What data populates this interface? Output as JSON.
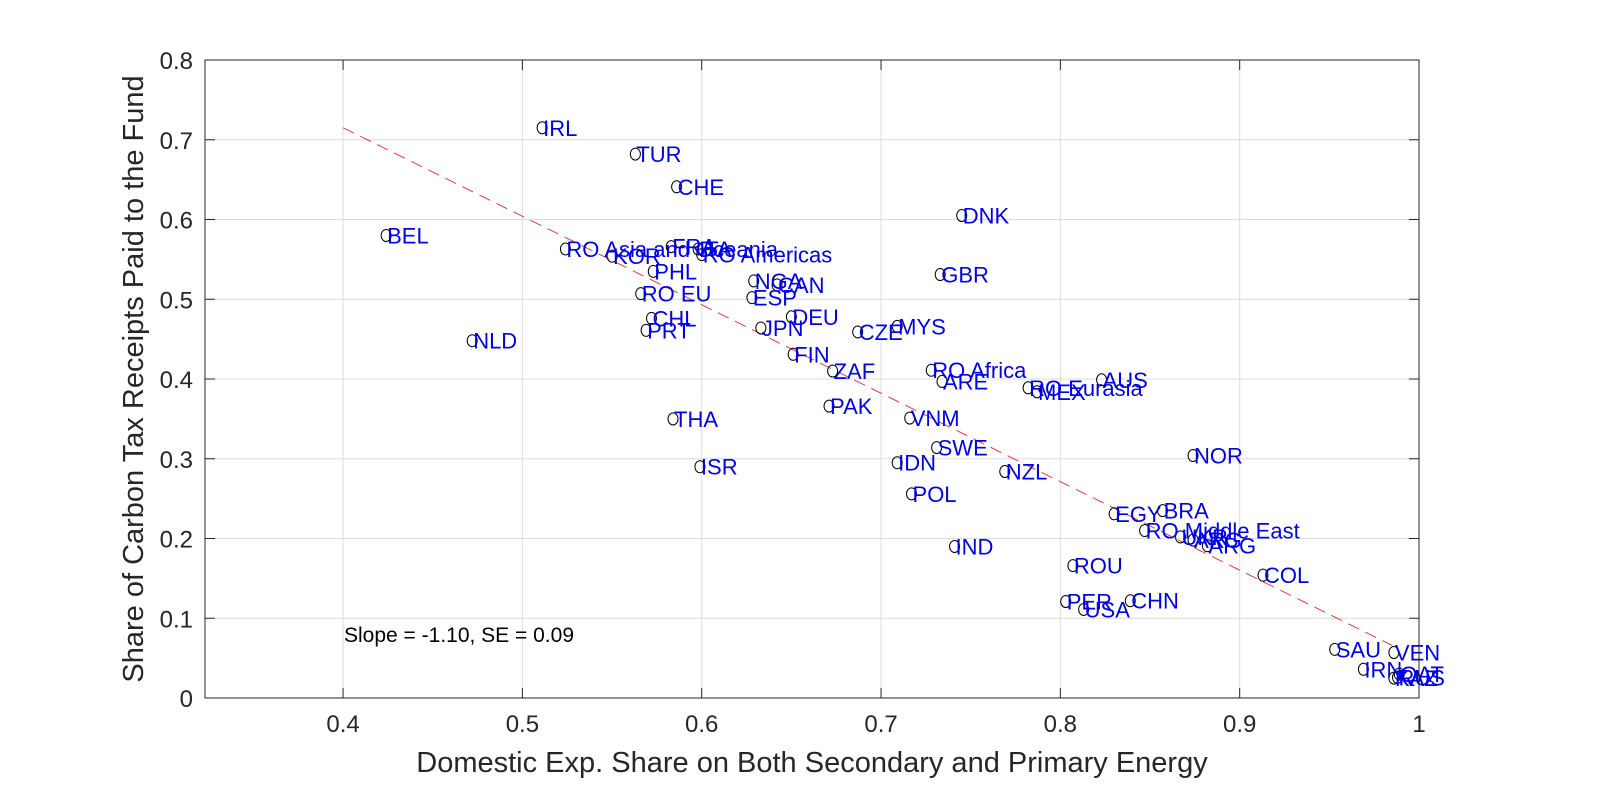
{
  "chart_data": {
    "type": "scatter",
    "xlabel": "Domestic Exp. Share on Both Secondary and Primary Energy",
    "ylabel": "Share of Carbon Tax Receipts Paid to the Fund",
    "xlim": [
      0.323,
      1.0
    ],
    "ylim": [
      0,
      0.8
    ],
    "xticks": [
      0.4,
      0.5,
      0.6,
      0.7,
      0.8,
      0.9,
      1
    ],
    "xtick_labels": [
      "0.4",
      "0.5",
      "0.6",
      "0.7",
      "0.8",
      "0.9",
      "1"
    ],
    "yticks": [
      0,
      0.1,
      0.2,
      0.3,
      0.4,
      0.5,
      0.6,
      0.7,
      0.8
    ],
    "ytick_labels": [
      "0",
      "0.1",
      "0.2",
      "0.3",
      "0.4",
      "0.5",
      "0.6",
      "0.7",
      "0.8"
    ],
    "grid": true,
    "annotation": "Slope = -1.10, SE = 0.09",
    "fit_line": {
      "x": [
        0.4,
        0.985
      ],
      "y": [
        0.715,
        0.066
      ]
    },
    "points": [
      {
        "label": "IRL",
        "x": 0.511,
        "y": 0.715
      },
      {
        "label": "TUR",
        "x": 0.563,
        "y": 0.682
      },
      {
        "label": "CHE",
        "x": 0.586,
        "y": 0.641
      },
      {
        "label": "DNK",
        "x": 0.745,
        "y": 0.605
      },
      {
        "label": "BEL",
        "x": 0.424,
        "y": 0.58
      },
      {
        "label": "RO Asia and Oceania",
        "x": 0.524,
        "y": 0.563
      },
      {
        "label": "FRA",
        "x": 0.583,
        "y": 0.566
      },
      {
        "label": "ITA",
        "x": 0.598,
        "y": 0.563
      },
      {
        "label": "RO Americas",
        "x": 0.6,
        "y": 0.556
      },
      {
        "label": "KOR",
        "x": 0.55,
        "y": 0.554
      },
      {
        "label": "PHL",
        "x": 0.573,
        "y": 0.535
      },
      {
        "label": "GBR",
        "x": 0.733,
        "y": 0.531
      },
      {
        "label": "NGA",
        "x": 0.629,
        "y": 0.523
      },
      {
        "label": "CAN",
        "x": 0.642,
        "y": 0.518
      },
      {
        "label": "RO EU",
        "x": 0.566,
        "y": 0.507
      },
      {
        "label": "ESP",
        "x": 0.628,
        "y": 0.502
      },
      {
        "label": "DEU",
        "x": 0.65,
        "y": 0.478
      },
      {
        "label": "CHL",
        "x": 0.572,
        "y": 0.476
      },
      {
        "label": "MYS",
        "x": 0.709,
        "y": 0.466
      },
      {
        "label": "JPN",
        "x": 0.633,
        "y": 0.464
      },
      {
        "label": "PRT",
        "x": 0.569,
        "y": 0.461
      },
      {
        "label": "CZE",
        "x": 0.687,
        "y": 0.459
      },
      {
        "label": "NLD",
        "x": 0.472,
        "y": 0.448
      },
      {
        "label": "FIN",
        "x": 0.651,
        "y": 0.431
      },
      {
        "label": "RO Africa",
        "x": 0.728,
        "y": 0.411
      },
      {
        "label": "ZAF",
        "x": 0.673,
        "y": 0.41
      },
      {
        "label": "AUS",
        "x": 0.823,
        "y": 0.399
      },
      {
        "label": "ARE",
        "x": 0.734,
        "y": 0.397
      },
      {
        "label": "RO Eurasia",
        "x": 0.782,
        "y": 0.389
      },
      {
        "label": "MEX",
        "x": 0.787,
        "y": 0.384
      },
      {
        "label": "PAK",
        "x": 0.671,
        "y": 0.366
      },
      {
        "label": "THA",
        "x": 0.584,
        "y": 0.35
      },
      {
        "label": "VNM",
        "x": 0.716,
        "y": 0.351
      },
      {
        "label": "SWE",
        "x": 0.731,
        "y": 0.314
      },
      {
        "label": "NOR",
        "x": 0.874,
        "y": 0.304
      },
      {
        "label": "IDN",
        "x": 0.709,
        "y": 0.295
      },
      {
        "label": "ISR",
        "x": 0.599,
        "y": 0.29
      },
      {
        "label": "NZL",
        "x": 0.769,
        "y": 0.284
      },
      {
        "label": "POL",
        "x": 0.717,
        "y": 0.256
      },
      {
        "label": "BRA",
        "x": 0.857,
        "y": 0.235
      },
      {
        "label": "EGY",
        "x": 0.83,
        "y": 0.231
      },
      {
        "label": "RO Middle East",
        "x": 0.847,
        "y": 0.21
      },
      {
        "label": "UKR",
        "x": 0.867,
        "y": 0.202
      },
      {
        "label": "ARG",
        "x": 0.874,
        "y": 0.198
      },
      {
        "label": "ARG",
        "x": 0.882,
        "y": 0.191
      },
      {
        "label": "IND",
        "x": 0.741,
        "y": 0.19
      },
      {
        "label": "ROU",
        "x": 0.807,
        "y": 0.166
      },
      {
        "label": "COL",
        "x": 0.913,
        "y": 0.154
      },
      {
        "label": "PER",
        "x": 0.803,
        "y": 0.121
      },
      {
        "label": "CHN",
        "x": 0.839,
        "y": 0.122
      },
      {
        "label": "USA",
        "x": 0.813,
        "y": 0.111
      },
      {
        "label": "SAU",
        "x": 0.953,
        "y": 0.061
      },
      {
        "label": "VEN",
        "x": 0.986,
        "y": 0.057
      },
      {
        "label": "IRN",
        "x": 0.969,
        "y": 0.036
      },
      {
        "label": "QAT",
        "x": 0.989,
        "y": 0.03
      },
      {
        "label": "RUS",
        "x": 0.988,
        "y": 0.026
      },
      {
        "label": "KAZ",
        "x": 0.986,
        "y": 0.025
      }
    ]
  }
}
